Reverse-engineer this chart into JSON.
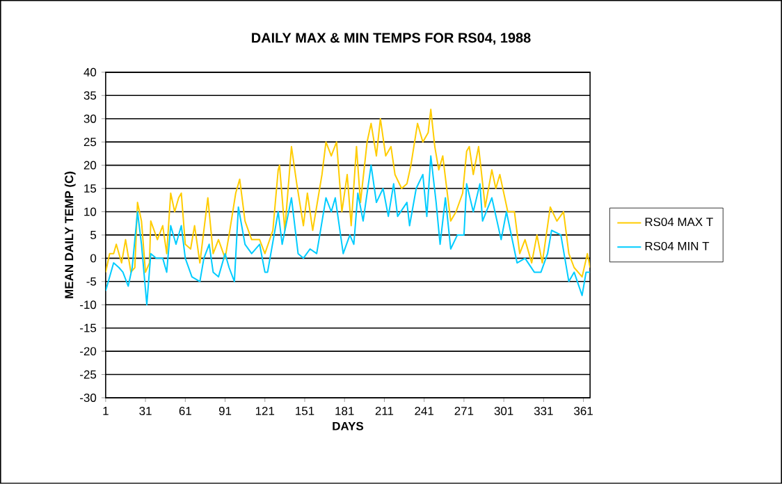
{
  "chart_data": {
    "type": "line",
    "title": "DAILY MAX & MIN TEMPS FOR RS04, 1988",
    "xlabel": "DAYS",
    "ylabel": "MEAN DAILY TEMP (C)",
    "xlim": [
      1,
      366
    ],
    "xticks": [
      1,
      31,
      61,
      91,
      121,
      151,
      181,
      211,
      241,
      271,
      301,
      331,
      361
    ],
    "ylim": [
      -30,
      40
    ],
    "yticks": [
      -30,
      -25,
      -20,
      -15,
      -10,
      -5,
      0,
      5,
      10,
      15,
      20,
      25,
      30,
      35,
      40
    ],
    "grid": "y",
    "legend": "right",
    "marker": "none",
    "line_style": "solid",
    "series": [
      {
        "name": "RS04 MAX T",
        "color": "#ffcc00",
        "x": [
          1,
          4,
          7,
          9,
          13,
          16,
          20,
          23,
          25,
          28,
          31,
          34,
          35,
          40,
          44,
          47,
          50,
          53,
          56,
          58,
          61,
          65,
          68,
          72,
          78,
          82,
          86,
          91,
          94,
          99,
          102,
          106,
          111,
          117,
          121,
          127,
          131,
          132,
          136,
          141,
          145,
          150,
          153,
          157,
          164,
          167,
          171,
          175,
          179,
          183,
          186,
          190,
          193,
          198,
          201,
          205,
          208,
          212,
          216,
          219,
          224,
          228,
          231,
          236,
          240,
          244,
          246,
          249,
          252,
          255,
          261,
          265,
          270,
          273,
          275,
          278,
          282,
          287,
          292,
          295,
          298,
          304,
          309,
          313,
          317,
          322,
          326,
          330,
          336,
          341,
          346,
          350,
          354,
          360,
          364,
          366
        ],
        "values": [
          -3,
          1,
          1,
          3,
          -1,
          4,
          -3,
          -2,
          12,
          8,
          -3,
          -1,
          8,
          4,
          7,
          1,
          14,
          10,
          13,
          14,
          3,
          2,
          7,
          -1,
          13,
          1,
          4,
          0,
          5,
          14,
          17,
          8,
          4,
          4,
          1,
          6,
          19,
          20,
          6,
          24,
          16,
          7,
          14,
          6,
          18,
          25,
          22,
          25,
          10,
          18,
          7,
          24,
          12,
          25,
          29,
          22,
          30,
          22,
          24,
          18,
          15,
          16,
          20,
          29,
          25,
          27,
          32,
          24,
          19,
          22,
          8,
          10,
          14,
          23,
          24,
          18,
          24,
          11,
          19,
          15,
          18,
          10,
          10,
          1,
          4,
          -1,
          5,
          -1,
          11,
          8,
          10,
          1,
          -2,
          -4,
          1,
          -2
        ]
      },
      {
        "name": "RS04 MIN T",
        "color": "#00ccff",
        "x": [
          1,
          7,
          11,
          14,
          18,
          21,
          25,
          28,
          32,
          35,
          39,
          44,
          47,
          50,
          54,
          58,
          61,
          66,
          72,
          75,
          79,
          82,
          86,
          91,
          94,
          98,
          101,
          106,
          111,
          117,
          121,
          123,
          131,
          134,
          141,
          146,
          150,
          155,
          160,
          167,
          171,
          174,
          180,
          185,
          188,
          191,
          195,
          201,
          205,
          210,
          214,
          218,
          221,
          228,
          230,
          235,
          240,
          243,
          246,
          250,
          253,
          257,
          261,
          266,
          271,
          273,
          278,
          283,
          285,
          292,
          299,
          303,
          311,
          317,
          324,
          329,
          334,
          337,
          344,
          350,
          354,
          360,
          363,
          366
        ],
        "values": [
          -7,
          -1,
          -2,
          -3,
          -6,
          -2,
          10,
          3,
          -10,
          1,
          0,
          0,
          -3,
          7,
          3,
          7,
          0,
          -4,
          -5,
          0,
          3,
          -3,
          -4,
          1,
          -2,
          -5,
          11,
          3,
          1,
          3,
          -3,
          -3,
          10,
          3,
          13,
          1,
          0,
          2,
          1,
          13,
          10,
          13,
          1,
          5,
          3,
          14,
          8,
          20,
          12,
          15,
          9,
          16,
          9,
          12,
          7,
          15,
          18,
          9,
          22,
          12,
          3,
          13,
          2,
          5,
          5,
          16,
          10,
          16,
          8,
          13,
          4,
          10,
          -1,
          0,
          -3,
          -3,
          1,
          6,
          5,
          -5,
          -3,
          -8,
          -3,
          -3
        ]
      }
    ]
  }
}
